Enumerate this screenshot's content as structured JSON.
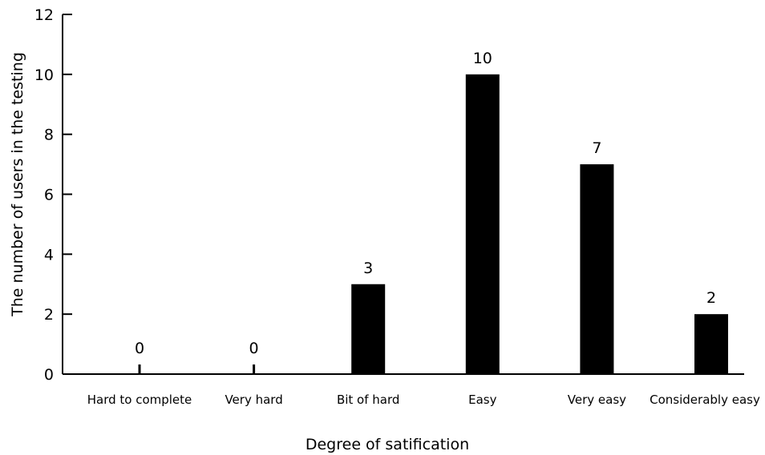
{
  "chart_data": {
    "type": "bar",
    "title": "",
    "xlabel": "Degree of satification",
    "ylabel": "The number of users in the testing",
    "categories": [
      "Hard to complete",
      "Very hard",
      "Bit of hard",
      "Easy",
      "Very easy",
      "Considerably easy"
    ],
    "values": [
      0,
      0,
      3,
      10,
      7,
      2
    ],
    "data_labels": [
      "0",
      "0",
      "3",
      "10",
      "7",
      "2"
    ],
    "yticks": [
      0,
      2,
      4,
      6,
      8,
      10,
      12
    ],
    "ylim": [
      0,
      12
    ],
    "grid": false,
    "legend": "none",
    "bar_color": "#000000"
  }
}
